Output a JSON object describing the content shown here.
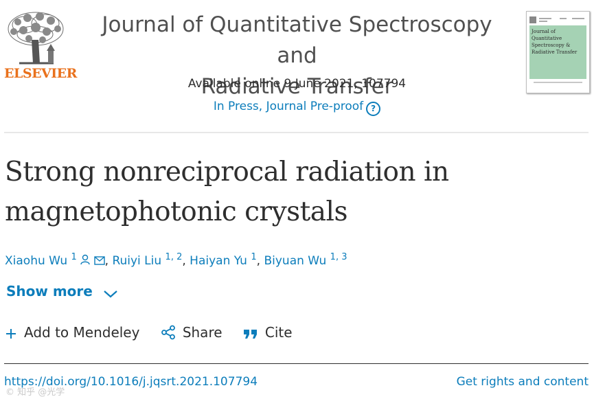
{
  "publisher": {
    "logo_icon": "elsevier-tree-icon",
    "logo_text": "ELSEVIER",
    "logo_color": "#e9711c"
  },
  "journal": {
    "title_line1": "Journal of Quantitative Spectroscopy and",
    "title_line2": "Radiative Transfer",
    "availability": "Available online 9 June 2021, 107794",
    "status": "In Press, Journal Pre-proof",
    "status_help_icon": "question-circle-icon",
    "cover_title": "Journal of Quantitative Spectroscopy & Radiative Transfer",
    "cover_color": "#a5d2b4"
  },
  "article": {
    "title": "Strong nonreciprocal radiation in magnetophotonic crystals",
    "authors": [
      {
        "name": "Xiaohu Wu",
        "aff": "1",
        "icons": [
          "person-icon",
          "envelope-icon"
        ]
      },
      {
        "name": "Ruiyi Liu",
        "aff": "1, 2"
      },
      {
        "name": "Haiyan Yu",
        "aff": "1"
      },
      {
        "name": "Biyuan Wu",
        "aff": "1, 3"
      }
    ],
    "show_more": "Show more"
  },
  "actions": {
    "mendeley": "Add to Mendeley",
    "share": "Share",
    "cite": "Cite"
  },
  "footer": {
    "doi": "https://doi.org/10.1016/j.jqsrt.2021.107794",
    "rights": "Get rights and content",
    "watermark": "© 知乎 @光学"
  },
  "colors": {
    "link": "#0c7dbb",
    "text": "#2e2e2e"
  }
}
